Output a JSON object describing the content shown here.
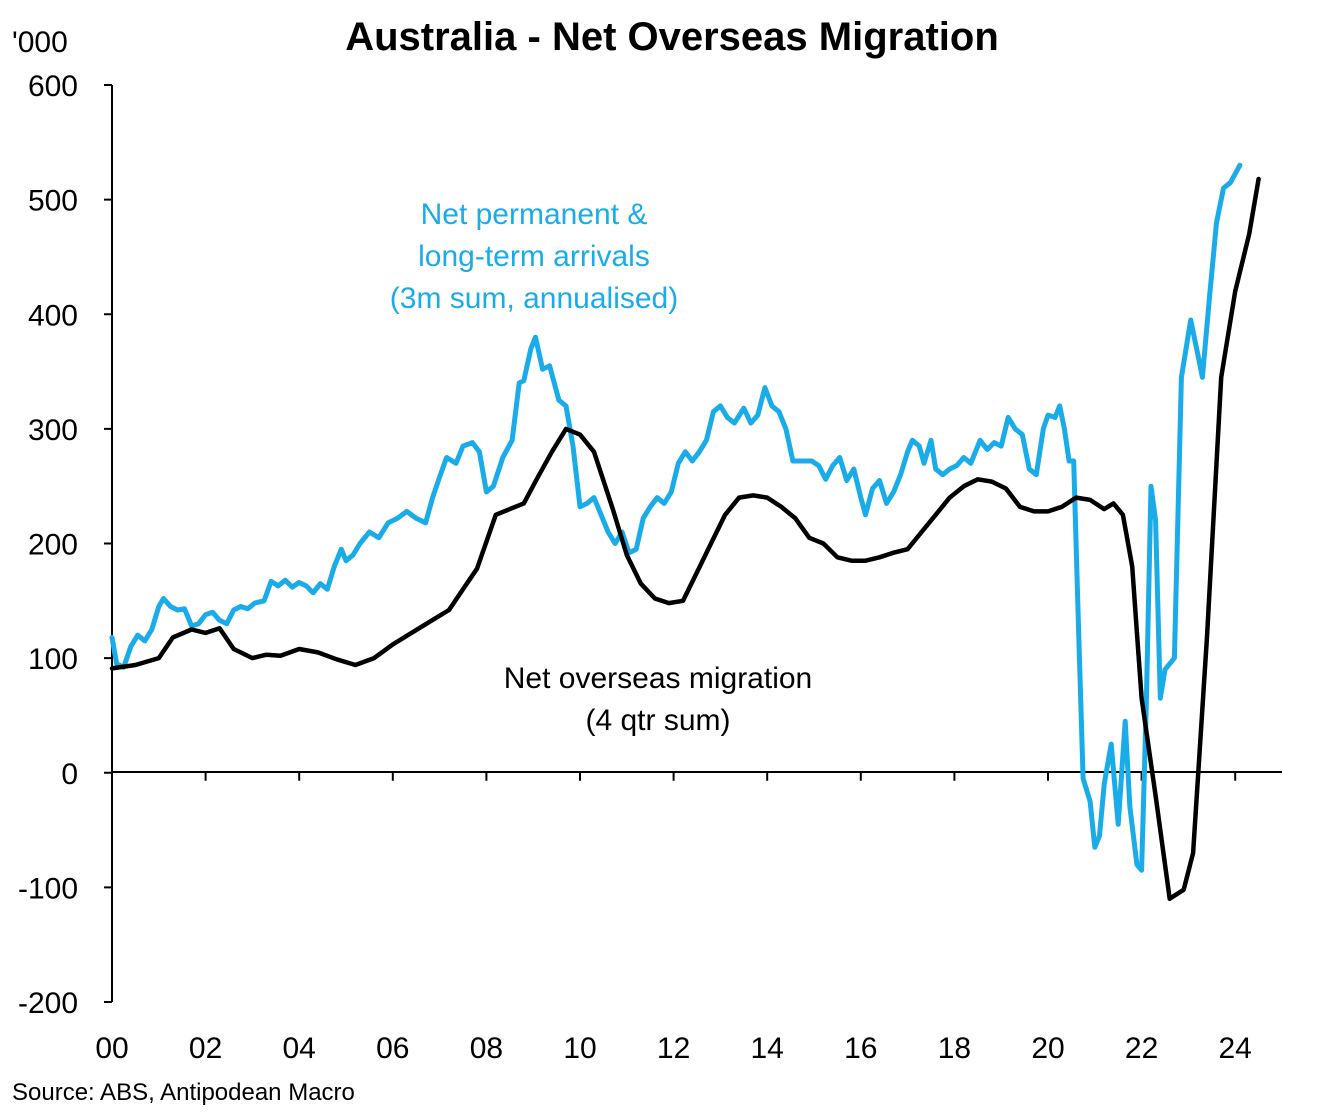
{
  "chart_data": {
    "type": "line",
    "title": "Australia  - Net Overseas Migration",
    "unit_label": "'000",
    "source": "Source: ABS, Antipodean Macro",
    "x_axis": {
      "range": [
        2000,
        2025
      ],
      "tick_values": [
        2000,
        2002,
        2004,
        2006,
        2008,
        2010,
        2012,
        2014,
        2016,
        2018,
        2020,
        2022,
        2024
      ],
      "tick_labels": [
        "00",
        "02",
        "04",
        "06",
        "08",
        "10",
        "12",
        "14",
        "16",
        "18",
        "20",
        "22",
        "24"
      ]
    },
    "y_axis": {
      "range": [
        -200,
        600
      ],
      "tick_values": [
        -200,
        -100,
        0,
        100,
        200,
        300,
        400,
        500,
        600
      ],
      "tick_labels": [
        "-200",
        "-100",
        "0",
        "100",
        "200",
        "300",
        "400",
        "500",
        "600"
      ]
    },
    "grid": false,
    "colors": {
      "net_arrivals": "#1aace8",
      "nom": "#000000"
    },
    "series": [
      {
        "id": "net_arrivals",
        "annotation": [
          "Net permanent &",
          "long-term arrivals",
          "(3m sum, annualised)"
        ],
        "points": [
          [
            2000.0,
            118
          ],
          [
            2000.1,
            95
          ],
          [
            2000.25,
            92
          ],
          [
            2000.4,
            110
          ],
          [
            2000.55,
            120
          ],
          [
            2000.7,
            115
          ],
          [
            2000.85,
            125
          ],
          [
            2001.0,
            145
          ],
          [
            2001.1,
            152
          ],
          [
            2001.25,
            145
          ],
          [
            2001.4,
            142
          ],
          [
            2001.55,
            143
          ],
          [
            2001.7,
            128
          ],
          [
            2001.85,
            130
          ],
          [
            2002.0,
            138
          ],
          [
            2002.15,
            140
          ],
          [
            2002.3,
            133
          ],
          [
            2002.45,
            130
          ],
          [
            2002.6,
            142
          ],
          [
            2002.75,
            145
          ],
          [
            2002.9,
            143
          ],
          [
            2003.05,
            148
          ],
          [
            2003.25,
            150
          ],
          [
            2003.4,
            167
          ],
          [
            2003.55,
            163
          ],
          [
            2003.7,
            168
          ],
          [
            2003.85,
            162
          ],
          [
            2004.0,
            166
          ],
          [
            2004.15,
            163
          ],
          [
            2004.3,
            157
          ],
          [
            2004.45,
            165
          ],
          [
            2004.6,
            160
          ],
          [
            2004.75,
            180
          ],
          [
            2004.9,
            195
          ],
          [
            2005.0,
            185
          ],
          [
            2005.15,
            190
          ],
          [
            2005.3,
            200
          ],
          [
            2005.5,
            210
          ],
          [
            2005.7,
            205
          ],
          [
            2005.9,
            218
          ],
          [
            2006.1,
            222
          ],
          [
            2006.3,
            228
          ],
          [
            2006.5,
            222
          ],
          [
            2006.7,
            218
          ],
          [
            2006.85,
            240
          ],
          [
            2007.0,
            258
          ],
          [
            2007.15,
            275
          ],
          [
            2007.35,
            270
          ],
          [
            2007.5,
            285
          ],
          [
            2007.7,
            288
          ],
          [
            2007.85,
            280
          ],
          [
            2008.0,
            245
          ],
          [
            2008.15,
            250
          ],
          [
            2008.35,
            275
          ],
          [
            2008.55,
            290
          ],
          [
            2008.7,
            340
          ],
          [
            2008.8,
            342
          ],
          [
            2008.95,
            370
          ],
          [
            2009.05,
            380
          ],
          [
            2009.2,
            352
          ],
          [
            2009.35,
            355
          ],
          [
            2009.55,
            325
          ],
          [
            2009.7,
            320
          ],
          [
            2009.85,
            285
          ],
          [
            2010.0,
            232
          ],
          [
            2010.15,
            235
          ],
          [
            2010.3,
            240
          ],
          [
            2010.45,
            225
          ],
          [
            2010.6,
            210
          ],
          [
            2010.75,
            200
          ],
          [
            2010.9,
            210
          ],
          [
            2011.05,
            192
          ],
          [
            2011.2,
            195
          ],
          [
            2011.35,
            222
          ],
          [
            2011.5,
            232
          ],
          [
            2011.65,
            240
          ],
          [
            2011.8,
            235
          ],
          [
            2011.95,
            245
          ],
          [
            2012.1,
            270
          ],
          [
            2012.25,
            280
          ],
          [
            2012.4,
            272
          ],
          [
            2012.55,
            280
          ],
          [
            2012.7,
            290
          ],
          [
            2012.85,
            315
          ],
          [
            2013.0,
            320
          ],
          [
            2013.15,
            310
          ],
          [
            2013.3,
            305
          ],
          [
            2013.5,
            318
          ],
          [
            2013.65,
            305
          ],
          [
            2013.8,
            312
          ],
          [
            2013.95,
            336
          ],
          [
            2014.1,
            320
          ],
          [
            2014.25,
            315
          ],
          [
            2014.4,
            300
          ],
          [
            2014.55,
            272
          ],
          [
            2014.75,
            272
          ],
          [
            2014.95,
            272
          ],
          [
            2015.1,
            268
          ],
          [
            2015.25,
            256
          ],
          [
            2015.4,
            268
          ],
          [
            2015.55,
            275
          ],
          [
            2015.7,
            255
          ],
          [
            2015.85,
            265
          ],
          [
            2016.0,
            240
          ],
          [
            2016.1,
            225
          ],
          [
            2016.25,
            248
          ],
          [
            2016.4,
            255
          ],
          [
            2016.55,
            235
          ],
          [
            2016.7,
            245
          ],
          [
            2016.85,
            260
          ],
          [
            2017.0,
            280
          ],
          [
            2017.1,
            290
          ],
          [
            2017.25,
            285
          ],
          [
            2017.35,
            270
          ],
          [
            2017.5,
            290
          ],
          [
            2017.6,
            265
          ],
          [
            2017.75,
            260
          ],
          [
            2017.9,
            265
          ],
          [
            2018.05,
            268
          ],
          [
            2018.2,
            275
          ],
          [
            2018.35,
            270
          ],
          [
            2018.55,
            290
          ],
          [
            2018.7,
            282
          ],
          [
            2018.85,
            288
          ],
          [
            2019.0,
            285
          ],
          [
            2019.15,
            310
          ],
          [
            2019.3,
            300
          ],
          [
            2019.45,
            295
          ],
          [
            2019.6,
            265
          ],
          [
            2019.75,
            260
          ],
          [
            2019.9,
            300
          ],
          [
            2020.0,
            312
          ],
          [
            2020.15,
            310
          ],
          [
            2020.25,
            320
          ],
          [
            2020.35,
            300
          ],
          [
            2020.45,
            272
          ],
          [
            2020.55,
            272
          ],
          [
            2020.65,
            130
          ],
          [
            2020.75,
            -5
          ],
          [
            2020.9,
            -25
          ],
          [
            2021.0,
            -65
          ],
          [
            2021.1,
            -55
          ],
          [
            2021.2,
            -10
          ],
          [
            2021.35,
            25
          ],
          [
            2021.5,
            -45
          ],
          [
            2021.65,
            45
          ],
          [
            2021.75,
            -30
          ],
          [
            2021.9,
            -80
          ],
          [
            2022.0,
            -85
          ],
          [
            2022.1,
            60
          ],
          [
            2022.2,
            250
          ],
          [
            2022.3,
            220
          ],
          [
            2022.4,
            65
          ],
          [
            2022.5,
            90
          ],
          [
            2022.7,
            100
          ],
          [
            2022.85,
            345
          ],
          [
            2023.05,
            395
          ],
          [
            2023.2,
            365
          ],
          [
            2023.3,
            345
          ],
          [
            2023.45,
            415
          ],
          [
            2023.6,
            480
          ],
          [
            2023.75,
            510
          ],
          [
            2023.9,
            515
          ],
          [
            2024.1,
            530
          ]
        ]
      },
      {
        "id": "nom",
        "annotation": [
          "Net overseas migration",
          "(4 qtr sum)"
        ],
        "points": [
          [
            2000.0,
            91
          ],
          [
            2000.5,
            94
          ],
          [
            2001.0,
            100
          ],
          [
            2001.3,
            118
          ],
          [
            2001.7,
            125
          ],
          [
            2002.0,
            122
          ],
          [
            2002.3,
            126
          ],
          [
            2002.6,
            108
          ],
          [
            2003.0,
            100
          ],
          [
            2003.3,
            103
          ],
          [
            2003.6,
            102
          ],
          [
            2004.0,
            108
          ],
          [
            2004.4,
            105
          ],
          [
            2004.8,
            99
          ],
          [
            2005.2,
            94
          ],
          [
            2005.6,
            100
          ],
          [
            2006.0,
            112
          ],
          [
            2006.4,
            122
          ],
          [
            2006.8,
            132
          ],
          [
            2007.2,
            142
          ],
          [
            2007.5,
            160
          ],
          [
            2007.8,
            178
          ],
          [
            2008.2,
            225
          ],
          [
            2008.5,
            230
          ],
          [
            2008.8,
            235
          ],
          [
            2009.1,
            258
          ],
          [
            2009.4,
            280
          ],
          [
            2009.7,
            300
          ],
          [
            2010.0,
            295
          ],
          [
            2010.3,
            280
          ],
          [
            2010.7,
            230
          ],
          [
            2011.0,
            190
          ],
          [
            2011.3,
            165
          ],
          [
            2011.6,
            152
          ],
          [
            2011.9,
            148
          ],
          [
            2012.2,
            150
          ],
          [
            2012.5,
            175
          ],
          [
            2012.8,
            200
          ],
          [
            2013.1,
            225
          ],
          [
            2013.4,
            240
          ],
          [
            2013.7,
            242
          ],
          [
            2014.0,
            240
          ],
          [
            2014.3,
            232
          ],
          [
            2014.6,
            222
          ],
          [
            2014.9,
            205
          ],
          [
            2015.2,
            200
          ],
          [
            2015.5,
            188
          ],
          [
            2015.8,
            185
          ],
          [
            2016.1,
            185
          ],
          [
            2016.4,
            188
          ],
          [
            2016.7,
            192
          ],
          [
            2017.0,
            195
          ],
          [
            2017.3,
            210
          ],
          [
            2017.6,
            225
          ],
          [
            2017.9,
            240
          ],
          [
            2018.2,
            250
          ],
          [
            2018.5,
            256
          ],
          [
            2018.8,
            254
          ],
          [
            2019.1,
            248
          ],
          [
            2019.4,
            232
          ],
          [
            2019.7,
            228
          ],
          [
            2020.0,
            228
          ],
          [
            2020.3,
            232
          ],
          [
            2020.6,
            240
          ],
          [
            2020.9,
            238
          ],
          [
            2021.2,
            230
          ],
          [
            2021.4,
            235
          ],
          [
            2021.6,
            225
          ],
          [
            2021.8,
            180
          ],
          [
            2022.0,
            65
          ],
          [
            2022.3,
            -20
          ],
          [
            2022.6,
            -110
          ],
          [
            2022.9,
            -102
          ],
          [
            2023.1,
            -70
          ],
          [
            2023.4,
            120
          ],
          [
            2023.7,
            345
          ],
          [
            2024.0,
            420
          ],
          [
            2024.3,
            470
          ],
          [
            2024.5,
            518
          ]
        ]
      }
    ]
  }
}
